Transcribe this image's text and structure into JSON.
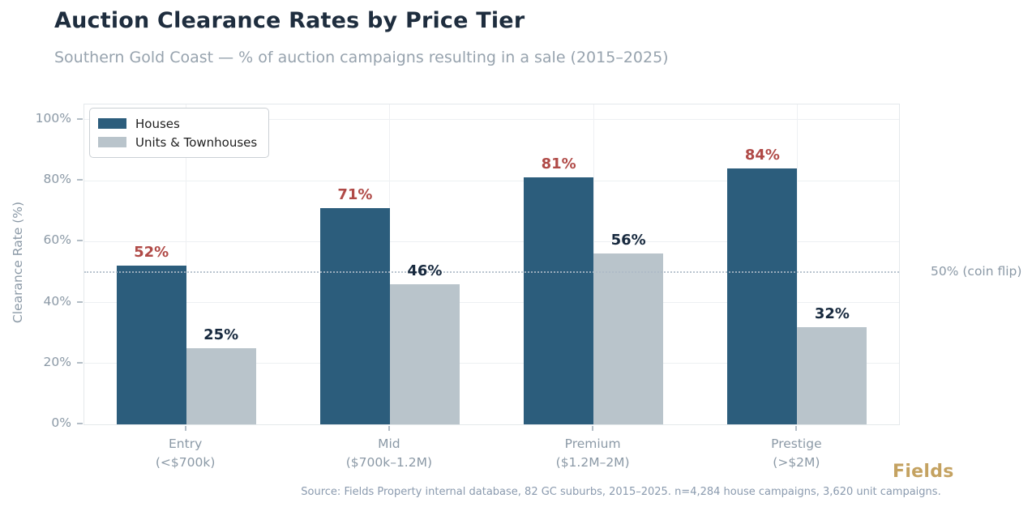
{
  "header": {
    "title": "Auction Clearance Rates by Price Tier",
    "subtitle": "Southern Gold Coast — % of auction campaigns resulting in a sale (2015–2025)"
  },
  "chart_data": {
    "type": "bar",
    "title": "Auction Clearance Rates by Price Tier",
    "xlabel": "",
    "ylabel": "Clearance Rate (%)",
    "ylim": [
      0,
      105
    ],
    "yticks": [
      0,
      20,
      40,
      60,
      80,
      100
    ],
    "ytick_suffix": "%",
    "grid": true,
    "legend_position": "upper left",
    "categories": [
      "Entry",
      "Mid",
      "Premium",
      "Prestige"
    ],
    "category_sublabels": [
      "(<$700k)",
      "($700k–1.2M)",
      "($1.2M–2M)",
      "(>$2M)"
    ],
    "series": [
      {
        "name": "Houses",
        "color": "#2c5d7c",
        "label_color": "#b04a47",
        "values": [
          52,
          71,
          81,
          84
        ]
      },
      {
        "name": "Units & Townhouses",
        "color": "#b9c4cb",
        "label_color": "#17293e",
        "values": [
          25,
          46,
          56,
          32
        ]
      }
    ],
    "value_suffix": "%",
    "reference_line": {
      "value": 50,
      "label": "50% (coin flip)",
      "style": "dotted",
      "color": "#b7c3d0"
    }
  },
  "footer": {
    "source": "Source: Fields Property internal database, 82 GC suburbs, 2015–2025. n=4,284 house campaigns, 3,620 unit campaigns.",
    "brand": "Fields"
  }
}
